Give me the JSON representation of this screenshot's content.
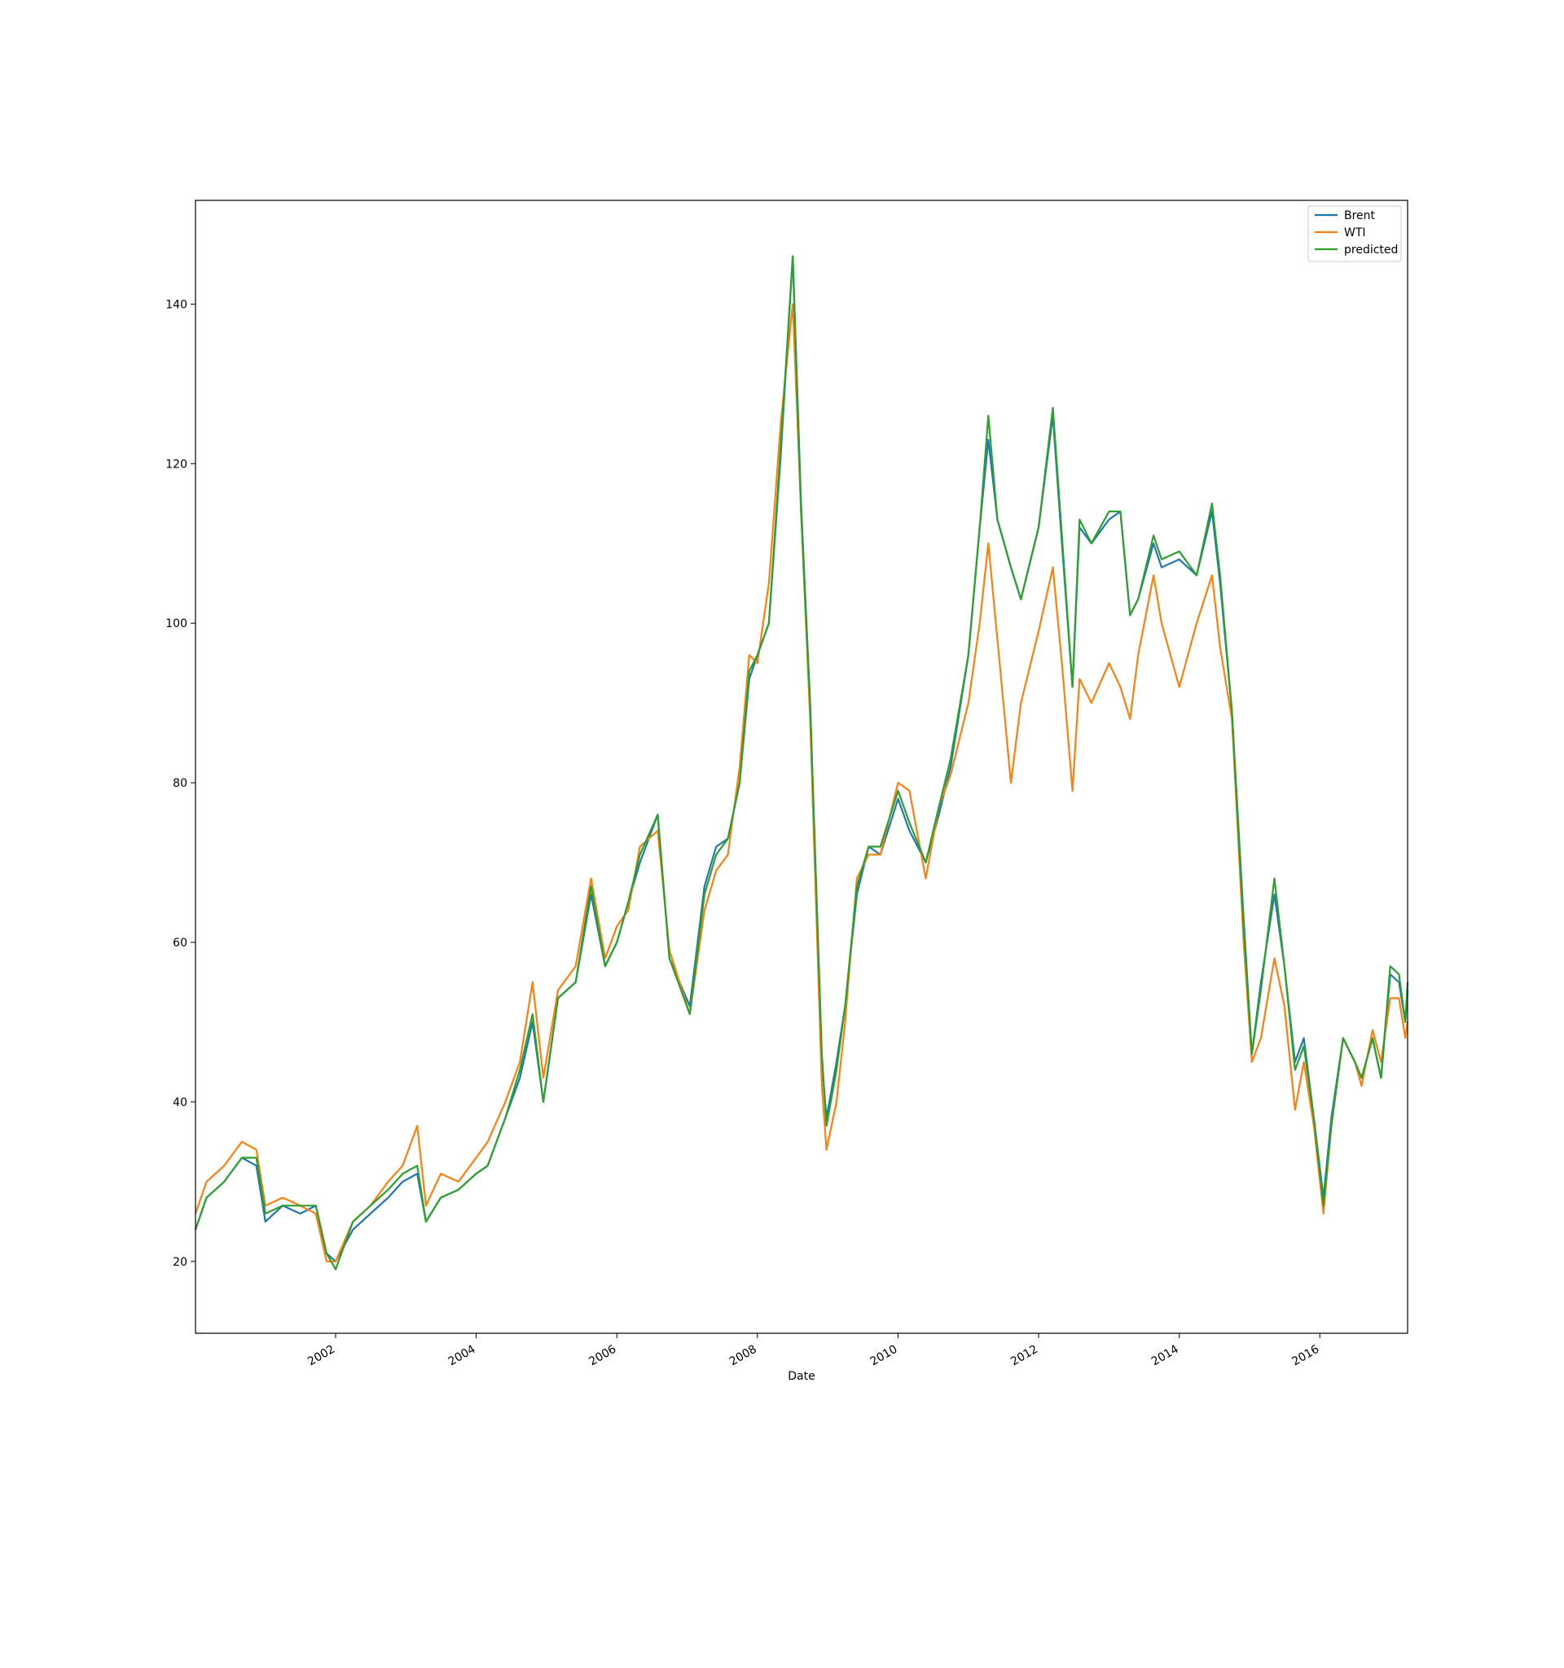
{
  "chart_data": {
    "type": "line",
    "title": "",
    "xlabel": "Date",
    "ylabel": "",
    "x_range": [
      "2000-01-04",
      "2017-04-01"
    ],
    "ylim": [
      11,
      153
    ],
    "y_ticks": [
      20,
      40,
      60,
      80,
      100,
      120,
      140
    ],
    "x_ticks": [
      {
        "date": "2002-01-01",
        "label": "2002"
      },
      {
        "date": "2004-01-01",
        "label": "2004"
      },
      {
        "date": "2006-01-01",
        "label": "2006"
      },
      {
        "date": "2008-01-01",
        "label": "2008"
      },
      {
        "date": "2010-01-01",
        "label": "2010"
      },
      {
        "date": "2012-01-01",
        "label": "2012"
      },
      {
        "date": "2014-01-01",
        "label": "2014"
      },
      {
        "date": "2016-01-01",
        "label": "2016"
      }
    ],
    "x_tick_rotation": 30,
    "grid": false,
    "legend_position": "top-right",
    "series": [
      {
        "name": "Brent",
        "color": "#1f77b4",
        "x": [
          "2000-01-04",
          "2000-03-01",
          "2000-06-01",
          "2000-09-01",
          "2000-11-15",
          "2001-01-01",
          "2001-04-01",
          "2001-07-01",
          "2001-09-20",
          "2001-11-15",
          "2002-01-01",
          "2002-04-01",
          "2002-07-01",
          "2002-10-01",
          "2002-12-15",
          "2003-03-01",
          "2003-04-15",
          "2003-07-01",
          "2003-10-01",
          "2004-01-01",
          "2004-03-01",
          "2004-06-01",
          "2004-08-15",
          "2004-10-20",
          "2004-12-15",
          "2005-03-01",
          "2005-06-01",
          "2005-08-20",
          "2005-11-01",
          "2006-01-01",
          "2006-03-01",
          "2006-05-01",
          "2006-08-01",
          "2006-10-01",
          "2007-01-15",
          "2007-04-01",
          "2007-06-01",
          "2007-08-01",
          "2007-10-01",
          "2007-11-20",
          "2008-01-01",
          "2008-03-01",
          "2008-05-01",
          "2008-07-03",
          "2008-08-15",
          "2008-10-01",
          "2008-12-01",
          "2008-12-25",
          "2009-02-15",
          "2009-04-01",
          "2009-06-01",
          "2009-08-01",
          "2009-10-01",
          "2010-01-01",
          "2010-03-01",
          "2010-05-25",
          "2010-08-01",
          "2010-10-01",
          "2011-01-01",
          "2011-03-01",
          "2011-04-15",
          "2011-06-01",
          "2011-08-10",
          "2011-10-01",
          "2012-01-01",
          "2012-03-15",
          "2012-05-01",
          "2012-06-25",
          "2012-08-01",
          "2012-10-01",
          "2013-01-01",
          "2013-03-01",
          "2013-04-20",
          "2013-06-01",
          "2013-08-20",
          "2013-10-01",
          "2014-01-01",
          "2014-04-01",
          "2014-06-20",
          "2014-08-01",
          "2014-10-01",
          "2014-12-01",
          "2015-01-13",
          "2015-03-01",
          "2015-05-10",
          "2015-07-01",
          "2015-08-25",
          "2015-10-10",
          "2015-12-01",
          "2016-01-20",
          "2016-03-01",
          "2016-05-01",
          "2016-07-01",
          "2016-08-05",
          "2016-10-01",
          "2016-11-14",
          "2017-01-01",
          "2017-02-15",
          "2017-03-20",
          "2017-04-01"
        ],
        "values": [
          24,
          28,
          30,
          33,
          32,
          25,
          27,
          26,
          27,
          21,
          20,
          24,
          26,
          28,
          30,
          31,
          25,
          28,
          29,
          31,
          32,
          38,
          43,
          50,
          40,
          53,
          55,
          66,
          57,
          60,
          65,
          70,
          76,
          58,
          52,
          67,
          72,
          73,
          80,
          93,
          96,
          100,
          121,
          146,
          115,
          90,
          45,
          38,
          45,
          52,
          66,
          72,
          71,
          78,
          74,
          70,
          76,
          82,
          96,
          112,
          123,
          113,
          107,
          103,
          112,
          126,
          110,
          92,
          112,
          110,
          113,
          114,
          101,
          103,
          110,
          107,
          108,
          106,
          114,
          105,
          89,
          63,
          46,
          55,
          66,
          57,
          45,
          48,
          38,
          28,
          38,
          48,
          45,
          43,
          48,
          43,
          56,
          55,
          50,
          54
        ]
      },
      {
        "name": "WTI",
        "color": "#ff7f0e",
        "x": [
          "2000-01-04",
          "2000-03-01",
          "2000-06-01",
          "2000-09-01",
          "2000-11-15",
          "2001-01-01",
          "2001-04-01",
          "2001-07-01",
          "2001-09-20",
          "2001-11-15",
          "2002-01-01",
          "2002-04-01",
          "2002-07-01",
          "2002-10-01",
          "2002-12-15",
          "2003-03-01",
          "2003-04-15",
          "2003-07-01",
          "2003-10-01",
          "2004-01-01",
          "2004-03-01",
          "2004-06-01",
          "2004-08-15",
          "2004-10-20",
          "2004-12-15",
          "2005-03-01",
          "2005-06-01",
          "2005-08-20",
          "2005-11-01",
          "2006-01-01",
          "2006-03-01",
          "2006-05-01",
          "2006-08-01",
          "2006-10-01",
          "2007-01-15",
          "2007-04-01",
          "2007-06-01",
          "2007-08-01",
          "2007-10-01",
          "2007-11-20",
          "2008-01-01",
          "2008-03-01",
          "2008-05-01",
          "2008-07-03",
          "2008-08-15",
          "2008-10-01",
          "2008-12-01",
          "2008-12-25",
          "2009-02-15",
          "2009-04-01",
          "2009-06-01",
          "2009-08-01",
          "2009-10-01",
          "2010-01-01",
          "2010-03-01",
          "2010-05-25",
          "2010-08-01",
          "2010-10-01",
          "2011-01-01",
          "2011-03-01",
          "2011-04-15",
          "2011-06-01",
          "2011-08-10",
          "2011-10-01",
          "2012-01-01",
          "2012-03-15",
          "2012-05-01",
          "2012-06-25",
          "2012-08-01",
          "2012-10-01",
          "2013-01-01",
          "2013-03-01",
          "2013-04-20",
          "2013-06-01",
          "2013-08-20",
          "2013-10-01",
          "2014-01-01",
          "2014-04-01",
          "2014-06-20",
          "2014-08-01",
          "2014-10-01",
          "2014-12-01",
          "2015-01-13",
          "2015-03-01",
          "2015-05-10",
          "2015-07-01",
          "2015-08-25",
          "2015-10-10",
          "2015-12-01",
          "2016-01-20",
          "2016-03-01",
          "2016-05-01",
          "2016-07-01",
          "2016-08-05",
          "2016-10-01",
          "2016-11-14",
          "2017-01-01",
          "2017-02-15",
          "2017-03-20",
          "2017-04-01"
        ],
        "values": [
          26,
          30,
          32,
          35,
          34,
          27,
          28,
          27,
          26,
          20,
          20,
          25,
          27,
          30,
          32,
          37,
          27,
          31,
          30,
          33,
          35,
          40,
          45,
          55,
          43,
          54,
          57,
          68,
          58,
          62,
          64,
          72,
          74,
          59,
          51,
          64,
          69,
          71,
          82,
          96,
          95,
          105,
          125,
          140,
          114,
          88,
          42,
          34,
          40,
          50,
          68,
          71,
          71,
          80,
          79,
          68,
          77,
          81,
          90,
          100,
          110,
          98,
          80,
          90,
          99,
          107,
          95,
          79,
          93,
          90,
          95,
          92,
          88,
          96,
          106,
          100,
          92,
          100,
          106,
          97,
          88,
          60,
          45,
          48,
          58,
          52,
          39,
          45,
          37,
          26,
          37,
          48,
          45,
          42,
          49,
          45,
          53,
          53,
          48,
          50
        ]
      },
      {
        "name": "predicted",
        "color": "#2ca02c",
        "x": [
          "2000-01-04",
          "2000-03-01",
          "2000-06-01",
          "2000-09-01",
          "2000-11-15",
          "2001-01-01",
          "2001-04-01",
          "2001-07-01",
          "2001-09-20",
          "2001-11-15",
          "2002-01-01",
          "2002-04-01",
          "2002-07-01",
          "2002-10-01",
          "2002-12-15",
          "2003-03-01",
          "2003-04-15",
          "2003-07-01",
          "2003-10-01",
          "2004-01-01",
          "2004-03-01",
          "2004-06-01",
          "2004-08-15",
          "2004-10-20",
          "2004-12-15",
          "2005-03-01",
          "2005-06-01",
          "2005-08-20",
          "2005-11-01",
          "2006-01-01",
          "2006-03-01",
          "2006-05-01",
          "2006-08-01",
          "2006-10-01",
          "2007-01-15",
          "2007-04-01",
          "2007-06-01",
          "2007-08-01",
          "2007-10-01",
          "2007-11-20",
          "2008-01-01",
          "2008-03-01",
          "2008-05-01",
          "2008-07-03",
          "2008-08-15",
          "2008-10-01",
          "2008-12-01",
          "2008-12-25",
          "2009-02-15",
          "2009-04-01",
          "2009-06-01",
          "2009-08-01",
          "2009-10-01",
          "2010-01-01",
          "2010-03-01",
          "2010-05-25",
          "2010-08-01",
          "2010-10-01",
          "2011-01-01",
          "2011-03-01",
          "2011-04-15",
          "2011-06-01",
          "2011-08-10",
          "2011-10-01",
          "2012-01-01",
          "2012-03-15",
          "2012-05-01",
          "2012-06-25",
          "2012-08-01",
          "2012-10-01",
          "2013-01-01",
          "2013-03-01",
          "2013-04-20",
          "2013-06-01",
          "2013-08-20",
          "2013-10-01",
          "2014-01-01",
          "2014-04-01",
          "2014-06-20",
          "2014-08-01",
          "2014-10-01",
          "2014-12-01",
          "2015-01-13",
          "2015-03-01",
          "2015-05-10",
          "2015-07-01",
          "2015-08-25",
          "2015-10-10",
          "2015-12-01",
          "2016-01-20",
          "2016-03-01",
          "2016-05-01",
          "2016-07-01",
          "2016-08-05",
          "2016-10-01",
          "2016-11-14",
          "2017-01-01",
          "2017-02-15",
          "2017-03-20",
          "2017-04-01"
        ],
        "values": [
          24,
          28,
          30,
          33,
          33,
          26,
          27,
          27,
          27,
          21,
          19,
          25,
          27,
          29,
          31,
          32,
          25,
          28,
          29,
          31,
          32,
          38,
          44,
          51,
          40,
          53,
          55,
          67,
          57,
          60,
          65,
          71,
          76,
          58,
          51,
          66,
          71,
          73,
          80,
          94,
          96,
          100,
          122,
          146,
          114,
          90,
          46,
          37,
          44,
          52,
          67,
          72,
          72,
          79,
          75,
          70,
          77,
          83,
          96,
          112,
          126,
          113,
          107,
          103,
          112,
          127,
          111,
          92,
          113,
          110,
          114,
          114,
          101,
          103,
          111,
          108,
          109,
          106,
          115,
          106,
          89,
          62,
          46,
          54,
          68,
          57,
          44,
          47,
          38,
          27,
          37,
          48,
          45,
          43,
          48,
          43,
          57,
          56,
          50,
          55
        ]
      }
    ]
  }
}
